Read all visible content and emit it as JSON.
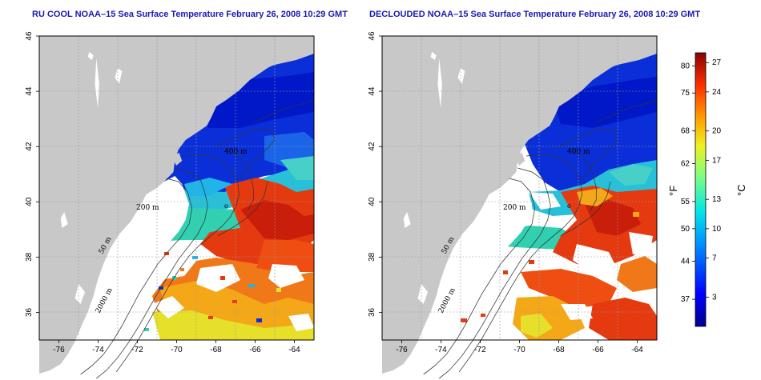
{
  "titles": {
    "left": "RU COOL NOAA–15 Sea Surface Temperature February 26, 2008 10:29 GMT",
    "right": "DECLOUDED NOAA–15 Sea Surface Temperature February 26, 2008 10:29 GMT"
  },
  "axes": {
    "lon_ticks": [
      "-76",
      "-74",
      "-72",
      "-70",
      "-68",
      "-66",
      "-64"
    ],
    "lon_values": [
      -76,
      -74,
      -72,
      -70,
      -68,
      -66,
      -64
    ],
    "lat_ticks": [
      "36",
      "38",
      "40",
      "42",
      "44",
      "46"
    ],
    "lat_values": [
      36,
      38,
      40,
      42,
      44,
      46
    ],
    "lon_range": [
      -77,
      -63
    ],
    "lat_range": [
      35,
      46
    ]
  },
  "contour_labels": {
    "m200": "200 m",
    "m400": "400 m",
    "m50": "50 m",
    "m2000": "2000 m",
    "o_mark": "o"
  },
  "colorbar": {
    "f_label": "°F",
    "c_label": "°C",
    "f_ticks": [
      "80",
      "75",
      "68",
      "62",
      "55",
      "50",
      "44",
      "37"
    ],
    "c_ticks": [
      "27",
      "24",
      "20",
      "17",
      "13",
      "10",
      "7",
      "3"
    ],
    "c_range": [
      0,
      28
    ]
  },
  "colors": {
    "land": "#c8c8c8",
    "title": "#1a1ab0",
    "cold": "#0a1ed2",
    "warm": "#e23c12"
  }
}
